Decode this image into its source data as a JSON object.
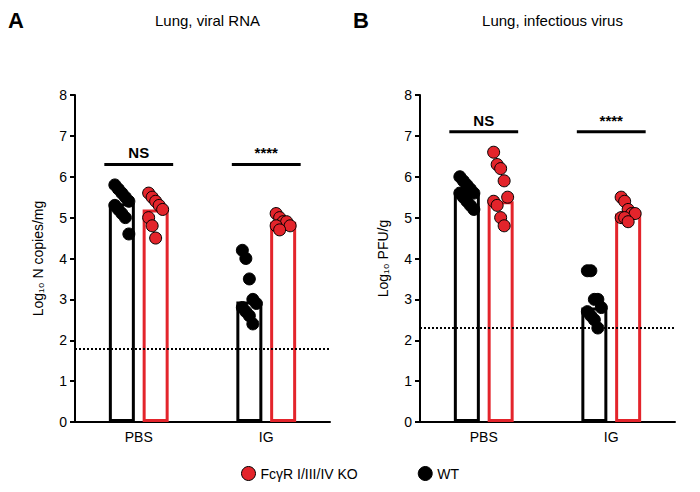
{
  "chart_data": [
    {
      "type": "bar",
      "panel": "A",
      "title": "Lung, viral RNA",
      "y_label": "Log₁₀ N copies/mg",
      "categories": [
        "PBS",
        "IG"
      ],
      "ylim": [
        0,
        8
      ],
      "yticks": [
        0,
        1,
        2,
        3,
        4,
        5,
        6,
        7,
        8
      ],
      "grid": false,
      "legend": "bottom",
      "detection_limit": 1.78,
      "annotations": [
        {
          "category": "PBS",
          "text": "NS"
        },
        {
          "category": "IG",
          "text": "****"
        }
      ],
      "series": [
        {
          "name": "WT",
          "color": "#000000",
          "values": [
            5.35,
            2.95
          ],
          "points": [
            [
              5.8,
              5.7,
              5.6,
              5.5,
              5.4,
              5.3,
              5.2,
              5.1,
              5.0,
              4.6
            ],
            [
              4.2,
              4.0,
              3.5,
              3.0,
              2.9,
              2.8,
              2.7,
              2.6,
              2.4
            ]
          ]
        },
        {
          "name": "FcγR I/III/IV KO",
          "color": "#e3242b",
          "values": [
            5.2,
            4.9
          ],
          "points": [
            [
              5.6,
              5.5,
              5.4,
              5.3,
              5.2,
              5.0,
              4.8,
              4.5
            ],
            [
              5.1,
              5.0,
              4.9,
              4.9,
              4.8,
              4.8,
              4.7
            ]
          ]
        }
      ]
    },
    {
      "type": "bar",
      "panel": "B",
      "title": "Lung, infectious virus",
      "y_label": "Log₁₀ PFU/g",
      "categories": [
        "PBS",
        "IG"
      ],
      "ylim": [
        0,
        8
      ],
      "yticks": [
        0,
        1,
        2,
        3,
        4,
        5,
        6,
        7,
        8
      ],
      "grid": false,
      "legend": "bottom",
      "detection_limit": 2.3,
      "annotations": [
        {
          "category": "PBS",
          "text": "NS"
        },
        {
          "category": "IG",
          "text": "****"
        }
      ],
      "series": [
        {
          "name": "WT",
          "color": "#000000",
          "values": [
            5.6,
            2.8
          ],
          "points": [
            [
              6.0,
              5.9,
              5.8,
              5.7,
              5.6,
              5.6,
              5.5,
              5.4,
              5.3,
              5.2
            ],
            [
              3.7,
              3.7,
              3.0,
              3.0,
              2.8,
              2.7,
              2.6,
              2.5,
              2.3
            ]
          ]
        },
        {
          "name": "FcγR I/III/IV KO",
          "color": "#e3242b",
          "values": [
            5.4,
            5.1
          ],
          "points": [
            [
              6.6,
              6.3,
              6.2,
              5.9,
              5.5,
              5.4,
              5.3,
              5.0,
              4.8
            ],
            [
              5.5,
              5.4,
              5.2,
              5.1,
              5.1,
              5.0,
              5.0,
              4.9
            ]
          ]
        }
      ]
    }
  ]
}
